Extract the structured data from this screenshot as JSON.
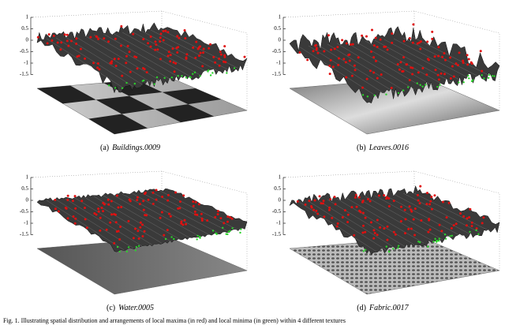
{
  "panels": [
    {
      "label": "(a)",
      "name": "Buildings.0009",
      "zticks": [
        1,
        0.5,
        0,
        -0.5,
        -1,
        -1.5
      ]
    },
    {
      "label": "(b)",
      "name": "Leaves.0016",
      "zticks": [
        1,
        0.5,
        0,
        -0.5,
        -1,
        -1.5
      ]
    },
    {
      "label": "(c)",
      "name": "Water.0005",
      "zticks": [
        1,
        0.5,
        0,
        -0.5,
        -1,
        -1.5
      ]
    },
    {
      "label": "(d)",
      "name": "Fabric.0017",
      "zticks": [
        1,
        0.5,
        0,
        -0.5,
        -1,
        -1.5
      ]
    }
  ],
  "caption": "Fig. 1.   Illustrating spatial distribution and arrangements of local maxima (in red) and local minima (in green) within 4 different textures"
}
